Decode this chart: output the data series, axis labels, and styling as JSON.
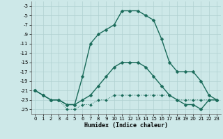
{
  "xlabel": "Humidex (Indice chaleur)",
  "xlim": [
    -0.5,
    23.5
  ],
  "ylim": [
    -26,
    -2
  ],
  "xticks": [
    0,
    1,
    2,
    3,
    4,
    5,
    6,
    7,
    8,
    9,
    10,
    11,
    12,
    13,
    14,
    15,
    16,
    17,
    18,
    19,
    20,
    21,
    22,
    23
  ],
  "yticks": [
    -3,
    -5,
    -7,
    -9,
    -11,
    -13,
    -15,
    -17,
    -19,
    -21,
    -23,
    -25
  ],
  "bg_color": "#cde8e8",
  "grid_color": "#b0d0d0",
  "line_color": "#1a6b5a",
  "curve1_x": [
    0,
    1,
    2,
    3,
    4,
    5,
    6,
    7,
    8,
    9,
    10,
    11,
    12,
    13,
    14,
    15,
    16,
    17,
    18,
    19,
    20,
    21,
    22,
    23
  ],
  "curve1_y": [
    -21,
    -22,
    -23,
    -23,
    -24,
    -24,
    -23,
    -22,
    -20,
    -18,
    -16,
    -15,
    -15,
    -15,
    -16,
    -18,
    -20,
    -22,
    -23,
    -24,
    -24,
    -25,
    -23,
    -23
  ],
  "curve2_x": [
    0,
    1,
    2,
    3,
    4,
    5,
    6,
    7,
    8,
    9,
    10,
    11,
    12,
    13,
    14,
    15,
    16,
    17,
    18,
    19,
    20,
    21,
    22,
    23
  ],
  "curve2_y": [
    -21,
    -22,
    -23,
    -23,
    -24,
    -24,
    -18,
    -11,
    -9,
    -8,
    -7,
    -4,
    -4,
    -4,
    -5,
    -6,
    -10,
    -15,
    -17,
    -17,
    -17,
    -19,
    -22,
    -23
  ],
  "curve3_x": [
    0,
    1,
    2,
    3,
    4,
    5,
    6,
    7,
    8,
    9,
    10,
    11,
    12,
    13,
    14,
    15,
    16,
    17,
    18,
    19,
    20,
    21,
    22,
    23
  ],
  "curve3_y": [
    -21,
    -22,
    -23,
    -23,
    -25,
    -25,
    -24,
    -24,
    -23,
    -23,
    -22,
    -22,
    -22,
    -22,
    -22,
    -22,
    -22,
    -22,
    -23,
    -23,
    -23,
    -23,
    -23,
    -23
  ]
}
